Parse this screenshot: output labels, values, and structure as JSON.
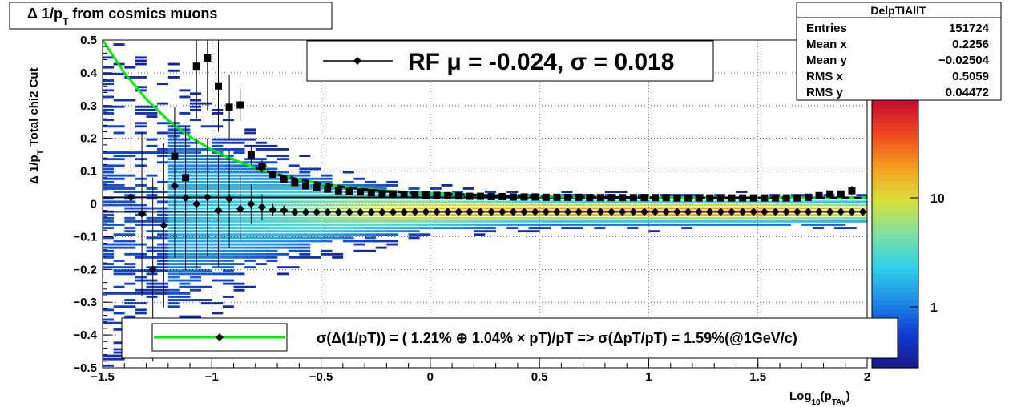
{
  "title": {
    "prefix": "Δ 1/p",
    "sub": "T",
    "suffix": " from cosmics muons"
  },
  "stats": {
    "name": "DelpTIAllT",
    "rows": [
      {
        "label": "Entries",
        "value": "151724"
      },
      {
        "label": "Mean x",
        "value": "0.2256"
      },
      {
        "label": "Mean y",
        "value": "−0.02504"
      },
      {
        "label": "RMS x",
        "value": "0.5059"
      },
      {
        "label": "RMS y",
        "value": "0.04472"
      }
    ]
  },
  "fit_legend": {
    "text": "RF μ = -0.024, σ =   0.018"
  },
  "res_legend": {
    "text": "σ(Δ(1/pT)) = ( 1.21% ⊕  1.04% × pT)/pT => σ(ΔpT/pT) =  1.59%(@1GeV/c)"
  },
  "axes": {
    "ylabel_main": "Δ 1/p",
    "ylabel_sub": "T",
    "ylabel_suffix": "  Total chi2 Cut",
    "xlabel_main": "Log",
    "xlabel_sub1": "10",
    "xlabel_mid": "(p",
    "xlabel_sub2": "TAv",
    "xlabel_end": ")"
  },
  "colors": {
    "resolution_curve": "#00ee00",
    "mean_markers": "#000000",
    "sigma_markers": "#000000",
    "palette": [
      "#1a1a8c",
      "#0d3fd4",
      "#1f8fe6",
      "#2fd1e8",
      "#7fe0a0",
      "#d8e03a",
      "#f4a020",
      "#ef4a1e",
      "#c8102e"
    ]
  },
  "chart_data": {
    "type": "heatmap",
    "xlim": [
      -1.5,
      2
    ],
    "ylim": [
      -0.5,
      0.5
    ],
    "x_ticks": [
      -1.5,
      -1,
      -0.5,
      0,
      0.5,
      1,
      1.5,
      2
    ],
    "x_tick_labels": [
      "−1.5",
      "−1",
      "−0.5",
      "0",
      "0.5",
      "1",
      "1.5",
      "2"
    ],
    "y_ticks": [
      -0.5,
      -0.4,
      -0.3,
      -0.2,
      -0.1,
      0,
      0.1,
      0.2,
      0.3,
      0.4,
      0.5
    ],
    "y_tick_labels": [
      "−0.5",
      "−0.4",
      "−0.3",
      "−0.2",
      "−0.1",
      "0",
      "0.1",
      "0.2",
      "0.3",
      "0.4",
      "0.5"
    ],
    "z_scale": "log",
    "z_tick_labels": [
      "1",
      "10"
    ],
    "grid": true,
    "series": [
      {
        "name": "RF",
        "kind": "mean_points",
        "x": [
          -1.37,
          -1.32,
          -1.27,
          -1.22,
          -1.17,
          -1.12,
          -1.07,
          -1.02,
          -0.97,
          -0.92,
          -0.87,
          -0.82,
          -0.77,
          -0.72,
          -0.67,
          -0.62,
          -0.57,
          -0.52,
          -0.47,
          -0.42,
          -0.37,
          -0.32,
          -0.27,
          -0.22,
          -0.17,
          -0.12,
          -0.07,
          -0.02,
          0.03,
          0.08,
          0.13,
          0.18,
          0.23,
          0.28,
          0.33,
          0.38,
          0.43,
          0.48,
          0.53,
          0.58,
          0.63,
          0.68,
          0.73,
          0.78,
          0.83,
          0.88,
          0.93,
          0.98,
          1.03,
          1.08,
          1.13,
          1.18,
          1.23,
          1.28,
          1.33,
          1.38,
          1.43,
          1.48,
          1.53,
          1.58,
          1.63,
          1.68,
          1.73,
          1.78,
          1.83,
          1.88,
          1.93,
          1.98
        ],
        "y": [
          0.02,
          -0.03,
          -0.2,
          -0.065,
          0.055,
          0.018,
          0.0,
          0.02,
          -0.02,
          0.015,
          -0.015,
          0.0,
          -0.01,
          -0.018,
          -0.02,
          -0.025,
          -0.025,
          -0.025,
          -0.025,
          -0.025,
          -0.025,
          -0.025,
          -0.025,
          -0.025,
          -0.025,
          -0.025,
          -0.024,
          -0.024,
          -0.024,
          -0.024,
          -0.024,
          -0.024,
          -0.024,
          -0.024,
          -0.024,
          -0.024,
          -0.024,
          -0.024,
          -0.024,
          -0.024,
          -0.024,
          -0.024,
          -0.024,
          -0.024,
          -0.024,
          -0.024,
          -0.024,
          -0.024,
          -0.024,
          -0.024,
          -0.024,
          -0.024,
          -0.024,
          -0.024,
          -0.024,
          -0.024,
          -0.024,
          -0.024,
          -0.024,
          -0.024,
          -0.024,
          -0.024,
          -0.024,
          -0.024,
          -0.024,
          -0.024,
          -0.024,
          -0.024
        ],
        "yerr": [
          0.25,
          0.25,
          0.28,
          0.25,
          0.22,
          0.22,
          0.2,
          0.18,
          0.17,
          0.15,
          0.1,
          0.06,
          0.04,
          0.02,
          0.015,
          0.01,
          0.008,
          0.006,
          0.005,
          0.005,
          0.004,
          0.004,
          0.004,
          0.004,
          0.004,
          0.004,
          0.004,
          0.004,
          0.004,
          0.004,
          0.004,
          0.004,
          0.004,
          0.004,
          0.004,
          0.004,
          0.004,
          0.004,
          0.004,
          0.004,
          0.004,
          0.004,
          0.004,
          0.004,
          0.004,
          0.004,
          0.004,
          0.004,
          0.004,
          0.004,
          0.004,
          0.004,
          0.004,
          0.004,
          0.004,
          0.004,
          0.004,
          0.004,
          0.004,
          0.004,
          0.004,
          0.004,
          0.004,
          0.004,
          0.004,
          0.004,
          0.004,
          0.005
        ]
      },
      {
        "kind": "sigma_points",
        "x": [
          -1.17,
          -1.12,
          -1.07,
          -1.02,
          -0.97,
          -0.92,
          -0.87,
          -0.82,
          -0.77,
          -0.72,
          -0.67,
          -0.62,
          -0.57,
          -0.52,
          -0.47,
          -0.42,
          -0.37,
          -0.32,
          -0.27,
          -0.22,
          -0.17,
          -0.12,
          -0.07,
          -0.02,
          0.03,
          0.08,
          0.13,
          0.18,
          0.23,
          0.28,
          0.33,
          0.38,
          0.43,
          0.48,
          0.53,
          0.58,
          0.63,
          0.68,
          0.73,
          0.78,
          0.83,
          0.88,
          0.93,
          0.98,
          1.03,
          1.08,
          1.13,
          1.18,
          1.23,
          1.28,
          1.33,
          1.38,
          1.43,
          1.48,
          1.53,
          1.58,
          1.63,
          1.68,
          1.73,
          1.78,
          1.83,
          1.88,
          1.93
        ],
        "y": [
          0.145,
          0.08,
          0.42,
          0.445,
          0.36,
          0.295,
          0.302,
          0.15,
          0.115,
          0.09,
          0.075,
          0.065,
          0.055,
          0.05,
          0.045,
          0.04,
          0.038,
          0.036,
          0.034,
          0.032,
          0.03,
          0.029,
          0.028,
          0.027,
          0.026,
          0.025,
          0.024,
          0.023,
          0.023,
          0.022,
          0.022,
          0.021,
          0.021,
          0.021,
          0.02,
          0.02,
          0.02,
          0.02,
          0.019,
          0.019,
          0.019,
          0.019,
          0.019,
          0.019,
          0.019,
          0.019,
          0.018,
          0.018,
          0.018,
          0.018,
          0.018,
          0.018,
          0.018,
          0.018,
          0.018,
          0.018,
          0.018,
          0.018,
          0.02,
          0.025,
          0.03,
          0.03,
          0.04
        ],
        "yerr": [
          0.15,
          0.15,
          0.16,
          0.16,
          0.14,
          0.1,
          0.05,
          0.03,
          0.02,
          0.01,
          0.008,
          0.006,
          0.005,
          0.004,
          0.003,
          0.003,
          0.002,
          0.002,
          0.002,
          0.002,
          0.002,
          0.002,
          0.002,
          0.002,
          0.002,
          0.002,
          0.002,
          0.002,
          0.002,
          0.002,
          0.002,
          0.002,
          0.002,
          0.002,
          0.002,
          0.002,
          0.002,
          0.002,
          0.002,
          0.002,
          0.002,
          0.002,
          0.002,
          0.002,
          0.002,
          0.002,
          0.002,
          0.002,
          0.002,
          0.002,
          0.002,
          0.002,
          0.002,
          0.002,
          0.002,
          0.002,
          0.002,
          0.002,
          0.004,
          0.008,
          0.01,
          0.01,
          0.015
        ]
      },
      {
        "kind": "resolution_curve",
        "x": [
          -1.5,
          -1.4,
          -1.3,
          -1.2,
          -1.1,
          -1.0,
          -0.9,
          -0.8,
          -0.7,
          -0.6,
          -0.5,
          -0.4,
          -0.3,
          -0.2,
          -0.1,
          0.0,
          0.25,
          0.5,
          0.75,
          1.0,
          1.25,
          1.5,
          1.75,
          2.0
        ],
        "y": [
          0.5,
          0.4,
          0.32,
          0.255,
          0.205,
          0.165,
          0.135,
          0.11,
          0.09,
          0.074,
          0.062,
          0.053,
          0.046,
          0.04,
          0.036,
          0.033,
          0.027,
          0.023,
          0.021,
          0.019,
          0.018,
          0.018,
          0.018,
          0.018
        ]
      },
      {
        "kind": "dashed_curve",
        "x": [
          -0.8,
          -0.7,
          -0.6,
          -0.5,
          -0.4,
          -0.3,
          -0.2,
          -0.1,
          0.0,
          0.25,
          0.5,
          0.75,
          1.0,
          1.25,
          1.5,
          1.75,
          2.0
        ],
        "y": [
          0.11,
          0.09,
          0.074,
          0.062,
          0.052,
          0.044,
          0.038,
          0.034,
          0.031,
          0.026,
          0.022,
          0.02,
          0.019,
          0.018,
          0.018,
          0.018,
          0.018
        ]
      },
      {
        "kind": "hline",
        "y": 0.02
      },
      {
        "kind": "hline",
        "y": -0.024
      }
    ]
  }
}
